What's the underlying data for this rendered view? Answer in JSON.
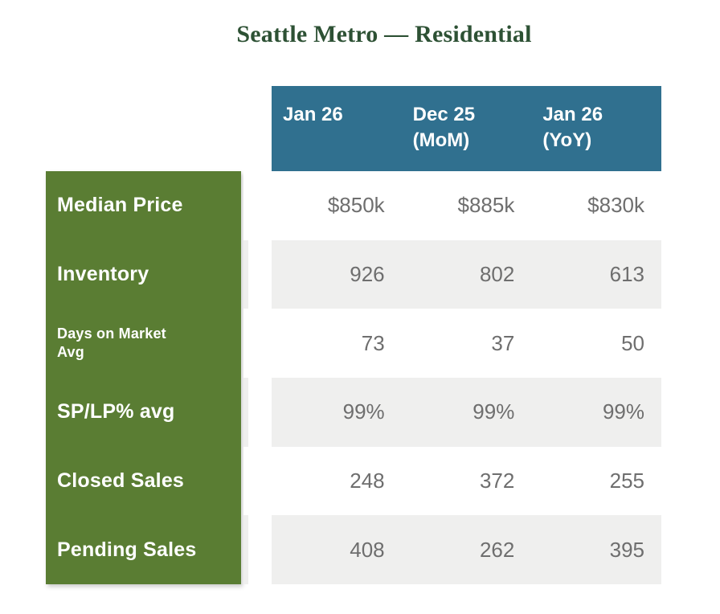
{
  "title": "Seattle Metro — Residential",
  "header": {
    "columns": [
      {
        "line1": "Jan 26",
        "line2": ""
      },
      {
        "line1": "Dec 25",
        "line2": "(MoM)"
      },
      {
        "line1": "Jan 26",
        "line2": "(YoY)"
      }
    ]
  },
  "rows": [
    {
      "label": "Median Price",
      "values": [
        "$850k",
        "$885k",
        "$830k"
      ]
    },
    {
      "label": "Inventory",
      "values": [
        "926",
        "802",
        "613"
      ]
    },
    {
      "label": "Days on Market Avg",
      "values": [
        "73",
        "37",
        "50"
      ]
    },
    {
      "label": "SP/LP% avg",
      "values": [
        "99%",
        "99%",
        "99%"
      ]
    },
    {
      "label": "Closed Sales",
      "values": [
        "248",
        "372",
        "255"
      ]
    },
    {
      "label": "Pending Sales",
      "values": [
        "408",
        "262",
        "395"
      ]
    }
  ],
  "colors": {
    "title_text": "#2d5134",
    "header_background": "#30708f",
    "header_text": "#ffffff",
    "sidebar_background": "#5a7d33",
    "sidebar_text": "#ffffff",
    "band_stripe": "#efefee",
    "value_text": "#6e6e6e"
  },
  "chart_data": {
    "type": "table",
    "title": "Seattle Metro — Residential",
    "columns": [
      "Jan 26",
      "Dec 25 (MoM)",
      "Jan 26 (YoY)"
    ],
    "row_labels": [
      "Median Price",
      "Inventory",
      "Days on Market Avg",
      "SP/LP% avg",
      "Closed Sales",
      "Pending Sales"
    ],
    "rows": [
      [
        "$850k",
        "$885k",
        "$830k"
      ],
      [
        926,
        802,
        613
      ],
      [
        73,
        37,
        50
      ],
      [
        "99%",
        "99%",
        "99%"
      ],
      [
        248,
        372,
        255
      ],
      [
        408,
        262,
        395
      ]
    ]
  }
}
